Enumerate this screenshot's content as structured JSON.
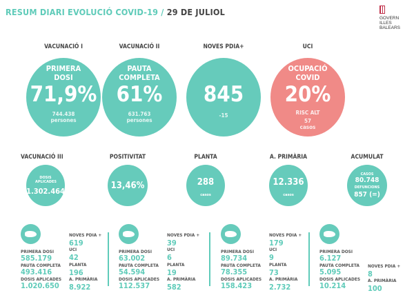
{
  "header": {
    "title": "RESUM DIARI EVOLUCIÓ COVID-19 /",
    "date": "29 DE JULIOL",
    "logo": [
      "GOVERN",
      "ILLES",
      "BALEARS"
    ]
  },
  "colors": {
    "teal": "#66cbbb",
    "red": "#f08a87"
  },
  "main": [
    {
      "label": "VACUNACIÓ I",
      "heading1": "PRIMERA",
      "heading2": "DOSI",
      "value": "71,9%",
      "sub1": "744.438",
      "sub2": "persones"
    },
    {
      "label": "VACUNACIÓ II",
      "heading1": "PAUTA",
      "heading2": "COMPLETA",
      "value": "61%",
      "sub1": "631.763",
      "sub2": "persones"
    },
    {
      "label": "NOVES PDIA+",
      "value": "845",
      "sub1": "-15"
    },
    {
      "label": "UCI",
      "heading1": "OCUPACIÓ",
      "heading2": "COVID",
      "value": "20%",
      "sub1": "RISC ALT",
      "sub2": "57",
      "sub3": "casos"
    }
  ],
  "secondary": [
    {
      "label": "VACUNACIÓ III",
      "top": "DOSIS APLICADES",
      "value": "1.302.464"
    },
    {
      "label": "POSITIVITAT",
      "value": "13,46%"
    },
    {
      "label": "PLANTA",
      "value": "288",
      "bottom": "casos"
    },
    {
      "label": "A. PRIMÀRIA",
      "value": "12.336",
      "bottom": "casos"
    },
    {
      "label": "ACUMULAT",
      "top": "CASOS",
      "value": "80.748",
      "mid": "DEFUNCIONS",
      "value2": "857 (=)"
    }
  ],
  "islands": [
    {
      "name": "mallorca",
      "left": [
        [
          "PRIMERA DOSI",
          "585.179"
        ],
        [
          "PAUTA COMPLETA",
          "493.416"
        ],
        [
          "DOSIS APLICADES",
          "1.020.650"
        ]
      ],
      "right": [
        [
          "NOVES PDIA +",
          "619"
        ],
        [
          "UCI",
          "42"
        ],
        [
          "PLANTA",
          "196"
        ],
        [
          "A. PRIMÀRIA",
          "8.922"
        ]
      ]
    },
    {
      "name": "menorca",
      "left": [
        [
          "PRIMERA DOSI",
          "63.002"
        ],
        [
          "PAUTA COMPLETA",
          "54.594"
        ],
        [
          "DOSIS APLICADES",
          "112.537"
        ]
      ],
      "right": [
        [
          "NOVES PDIA +",
          "39"
        ],
        [
          "UCI",
          "6"
        ],
        [
          "PLANTA",
          "19"
        ],
        [
          "A. PRIMÀRIA",
          "582"
        ]
      ]
    },
    {
      "name": "eivissa",
      "left": [
        [
          "PRIMERA DOSI",
          "89.734"
        ],
        [
          "PAUTA COMPLETA",
          "78.355"
        ],
        [
          "DOSIS APLICADES",
          "158.423"
        ]
      ],
      "right": [
        [
          "NOVES PDIA +",
          "179"
        ],
        [
          "UCI",
          "9"
        ],
        [
          "PLANTA",
          "73"
        ],
        [
          "A. PRIMÀRIA",
          "2.732"
        ]
      ]
    },
    {
      "name": "formentera",
      "left": [
        [
          "PRIMERA DOSI",
          "6.127"
        ],
        [
          "PAUTA COMPLETA",
          "5.095"
        ],
        [
          "DOSIS APLICADES",
          "10.214"
        ]
      ],
      "right": [
        [
          "NOVES PDIA +",
          "8"
        ],
        [
          "A. PRIMÀRIA",
          "100"
        ]
      ]
    }
  ]
}
